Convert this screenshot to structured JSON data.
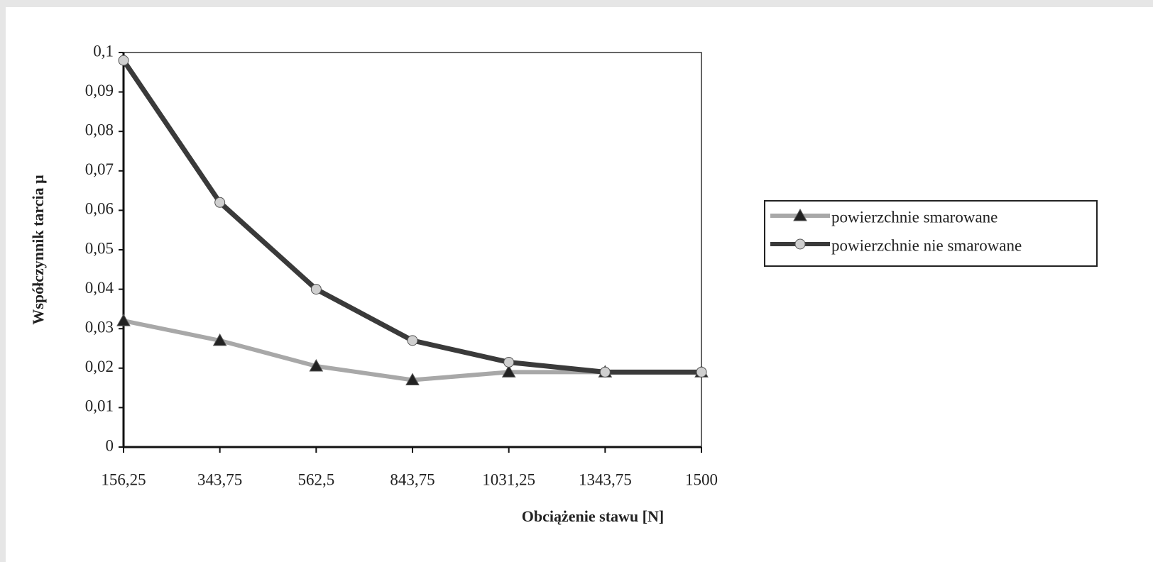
{
  "chart_data": {
    "type": "line",
    "xlabel": "Obciążenie stawu [N]",
    "ylabel": "Współczynnik tarcia μ",
    "categories": [
      "156,25",
      "343,75",
      "562,5",
      "843,75",
      "1031,25",
      "1343,75",
      "1500"
    ],
    "series": [
      {
        "name": "powierzchnie smarowane",
        "color": "#a8a8a8",
        "marker": "triangle",
        "marker_color": "#222222",
        "values": [
          0.032,
          0.027,
          0.0205,
          0.017,
          0.019,
          0.019,
          0.019
        ]
      },
      {
        "name": "powierzchnie nie smarowane",
        "color": "#3a3a3a",
        "marker": "circle",
        "marker_color": "#cfcfcf",
        "values": [
          0.098,
          0.062,
          0.04,
          0.027,
          0.0215,
          0.019,
          0.019
        ]
      }
    ],
    "ylim": [
      0,
      0.1
    ],
    "yticks": [
      0,
      {
        "value": 0.01,
        "label": "0,01"
      },
      {
        "value": 0.02,
        "label": "0,02"
      },
      {
        "value": 0.03,
        "label": "0,03"
      },
      {
        "value": 0.04,
        "label": "0,04"
      },
      {
        "value": 0.05,
        "label": "0,05"
      },
      {
        "value": 0.06,
        "label": "0,06"
      },
      {
        "value": 0.07,
        "label": "0,07"
      },
      {
        "value": 0.08,
        "label": "0,08"
      },
      {
        "value": 0.09,
        "label": "0,09"
      },
      {
        "value": 0.1,
        "label": "0,1"
      }
    ],
    "legend": "right",
    "grid": false
  }
}
